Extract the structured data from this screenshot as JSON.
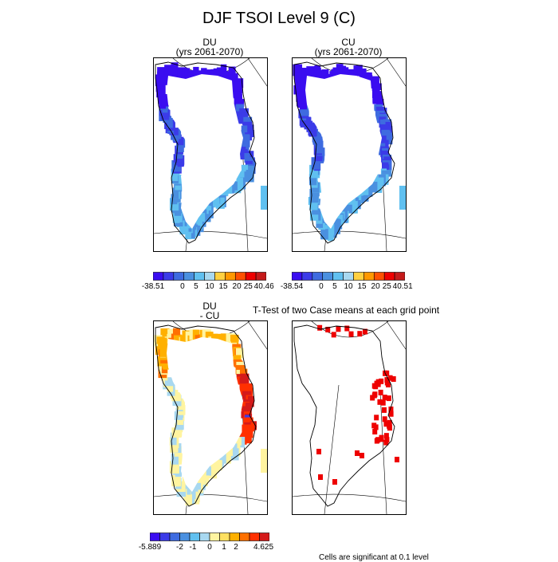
{
  "figure": {
    "title": "DJF TSOI Level 9 (C)"
  },
  "panels": {
    "du": {
      "title_line1": "DU",
      "title_line2": "(yrs 2061-2070)"
    },
    "cu": {
      "title_line1": "CU",
      "title_line2": "(yrs 2061-2070)"
    },
    "diff": {
      "title_line1": "DU",
      "title_line2": "- CU"
    },
    "ttest": {
      "title": "T-Test of two Case means at each grid point",
      "footnote": "Cells are significant at 0.1 level"
    }
  },
  "colors": {
    "palette_main": [
      "#3a0df0",
      "#3b3be8",
      "#3e6be0",
      "#4a90e0",
      "#60c0f0",
      "#a8d8f0",
      "#ffd040",
      "#ff9800",
      "#ff5000",
      "#ee0000",
      "#c41a1a"
    ],
    "palette_diff": [
      "#3a0df0",
      "#3b3be8",
      "#3e6be0",
      "#4a90e0",
      "#60c0f0",
      "#a8d8f0",
      "#fff4a0",
      "#ffe060",
      "#ffb000",
      "#ff7000",
      "#ff3000",
      "#d41a1a"
    ],
    "significant": "#ee0000",
    "coast": "#000000"
  },
  "chart_data": [
    {
      "type": "heatmap",
      "name": "DU",
      "title": "DU (yrs 2061-2070)",
      "variable": "TSOI",
      "units": "C",
      "colorbar_min": -38.51,
      "colorbar_max": 40.46,
      "colorbar_ticks": [
        "-38.51",
        "0",
        "5",
        "10",
        "15",
        "20",
        "25",
        "40.46"
      ],
      "dominant_range": "-38.51 to 0"
    },
    {
      "type": "heatmap",
      "name": "CU",
      "title": "CU (yrs 2061-2070)",
      "variable": "TSOI",
      "units": "C",
      "colorbar_min": -38.54,
      "colorbar_max": 40.51,
      "colorbar_ticks": [
        "-38.54",
        "0",
        "5",
        "10",
        "15",
        "20",
        "25",
        "40.51"
      ],
      "dominant_range": "-38.54 to 0"
    },
    {
      "type": "heatmap",
      "name": "DU - CU",
      "title": "DU - CU",
      "colorbar_min": -5.889,
      "colorbar_max": 4.625,
      "colorbar_ticks": [
        "-5.889",
        "-2",
        "-1",
        "0",
        "1",
        "2",
        "4.625"
      ]
    },
    {
      "type": "heatmap",
      "name": "T-Test",
      "title": "T-Test of two Case means at each grid point",
      "significance_level": 0.1
    }
  ]
}
